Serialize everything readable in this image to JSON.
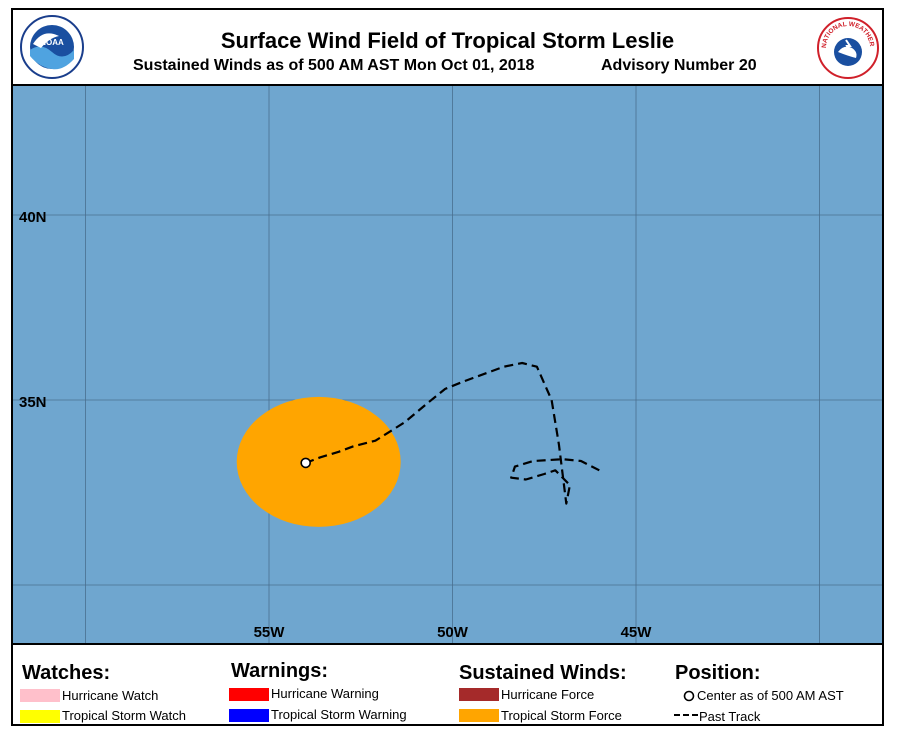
{
  "header": {
    "title": "Surface Wind Field of Tropical Storm Leslie",
    "subtitle": "Sustained Winds as of 500 AM AST Mon Oct 01, 2018",
    "advisory": "Advisory Number 20",
    "left_logo_text": "NOAA",
    "right_logo_text": "NATIONAL WEATHER SERVICE"
  },
  "map": {
    "ocean_color": "#6fa6cf",
    "grid_color": "#4a6f8f",
    "lat_labels": [
      "40N",
      "35N"
    ],
    "lon_labels": [
      "55W",
      "50W",
      "45W"
    ],
    "wind_field_color": "#ffa500",
    "storm_center": {
      "lat": 33.3,
      "lon": -54.0
    },
    "past_track": [
      [
        -46.0,
        33.1
      ],
      [
        -46.5,
        33.35
      ],
      [
        -47.0,
        33.4
      ],
      [
        -47.8,
        33.35
      ],
      [
        -48.3,
        33.2
      ],
      [
        -48.4,
        32.9
      ],
      [
        -48.0,
        32.85
      ],
      [
        -47.5,
        33.0
      ],
      [
        -47.2,
        33.1
      ],
      [
        -46.8,
        32.7
      ],
      [
        -46.9,
        32.2
      ],
      [
        -47.1,
        33.8
      ],
      [
        -47.3,
        35.0
      ],
      [
        -47.7,
        35.9
      ],
      [
        -48.1,
        36.0
      ],
      [
        -48.6,
        35.9
      ],
      [
        -49.7,
        35.5
      ],
      [
        -50.2,
        35.3
      ],
      [
        -50.7,
        34.9
      ],
      [
        -51.3,
        34.4
      ],
      [
        -52.1,
        33.9
      ],
      [
        -52.7,
        33.75
      ],
      [
        -53.1,
        33.6
      ],
      [
        -53.6,
        33.45
      ],
      [
        -54.0,
        33.3
      ]
    ]
  },
  "legend": {
    "watches": {
      "heading": "Watches:",
      "items": [
        {
          "label": "Hurricane Watch",
          "color": "#ffc0cb"
        },
        {
          "label": "Tropical Storm Watch",
          "color": "#ffff00"
        }
      ]
    },
    "warnings": {
      "heading": "Warnings:",
      "items": [
        {
          "label": "Hurricane Warning",
          "color": "#ff0000"
        },
        {
          "label": "Tropical Storm Warning",
          "color": "#0000ff"
        }
      ]
    },
    "winds": {
      "heading": "Sustained Winds:",
      "items": [
        {
          "label": "Hurricane Force",
          "color": "#a52a2a"
        },
        {
          "label": "Tropical Storm Force",
          "color": "#ffa500"
        }
      ]
    },
    "position": {
      "heading": "Position:",
      "center_label": "Center as of 500 AM AST",
      "track_label": "Past Track"
    }
  }
}
